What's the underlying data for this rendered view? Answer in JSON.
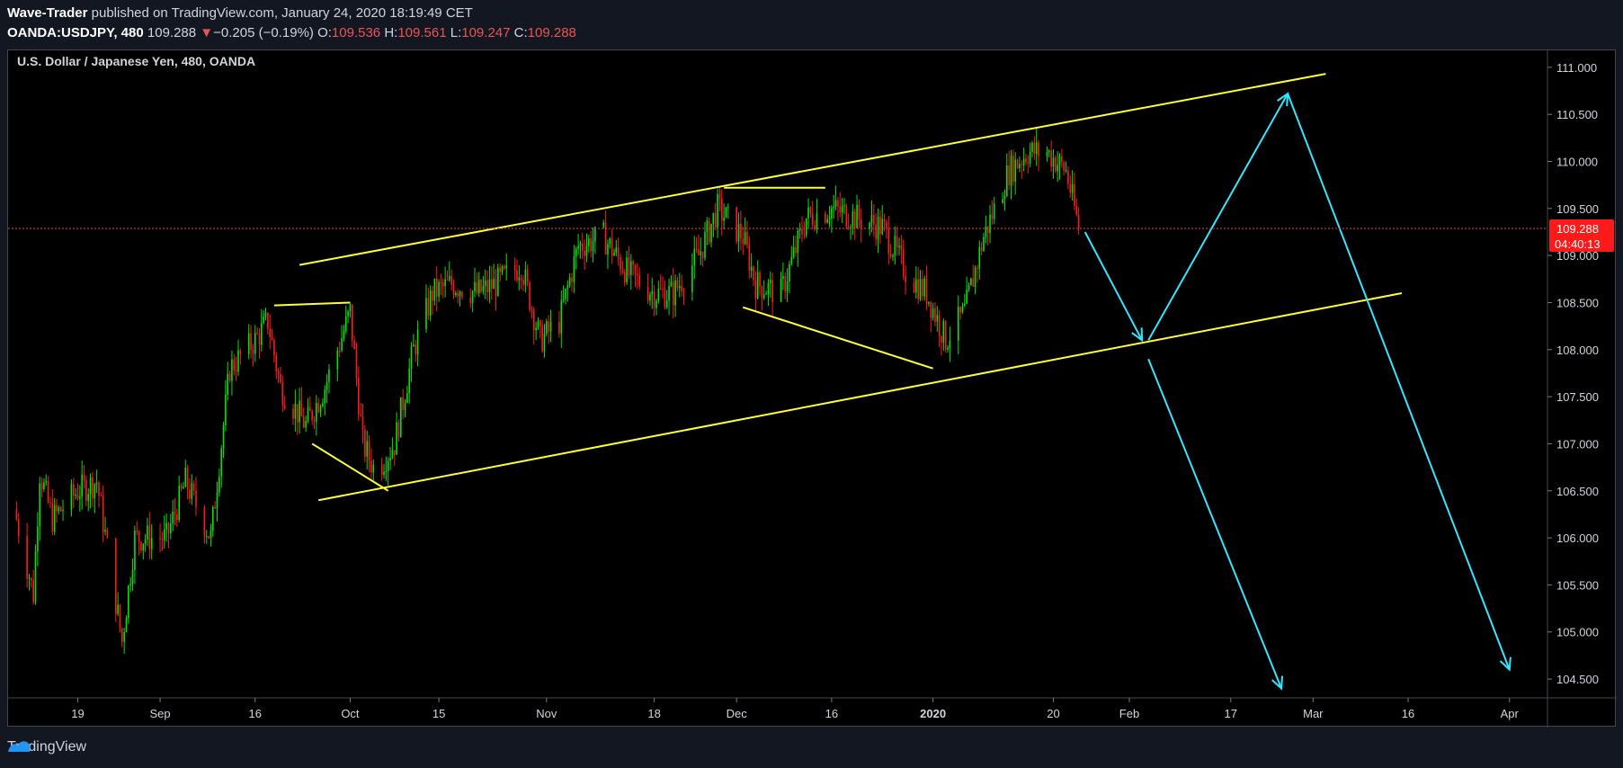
{
  "header": {
    "author": "Wave-Trader",
    "published_text": " published on TradingView.com, January 24, 2020 18:19:49 CET",
    "symbol": "OANDA:USDJPY, 480",
    "last": "109.288",
    "down_arrow": "▼",
    "change": "−0.205 (−0.19%)",
    "o_label": "O:",
    "o_value": "109.536",
    "h_label": "H:",
    "h_value": "109.561",
    "l_label": "L:",
    "l_value": "109.247",
    "c_label": "C:",
    "c_value": "109.288"
  },
  "footer": {
    "brand": "TradingView",
    "logo_icon": "tradingview-logo-icon"
  },
  "colors": {
    "background": "#000000",
    "page": "#131722",
    "up": "#00e600",
    "down": "#ff1a1a",
    "channel": "#ffff33",
    "projection": "#33e6ff",
    "price_line": "#ff3333",
    "price_tag": "#ff1a1a"
  },
  "chart_data": {
    "type": "candlestick",
    "title": "U.S. Dollar / Japanese Yen, 480, OANDA",
    "ylim": [
      104.3,
      111.18
    ],
    "y_ticks": [
      "111.000",
      "110.500",
      "110.000",
      "109.500",
      "109.000",
      "108.500",
      "108.000",
      "107.500",
      "107.000",
      "106.500",
      "106.000",
      "105.500",
      "105.000",
      "104.500"
    ],
    "x_ticks": [
      "19",
      "Sep",
      "16",
      "Oct",
      "15",
      "Nov",
      "18",
      "Dec",
      "16",
      "2020",
      "20",
      "Feb",
      "17",
      "Mar",
      "16",
      "Apr"
    ],
    "last_price": "109.288",
    "countdown": "04:40:13",
    "price_path": [
      [
        "2019-08-09",
        106.3
      ],
      [
        "2019-08-12",
        105.4
      ],
      [
        "2019-08-13",
        106.7
      ],
      [
        "2019-08-15",
        106.2
      ],
      [
        "2019-08-19",
        106.5
      ],
      [
        "2019-08-22",
        106.6
      ],
      [
        "2019-08-26",
        104.9
      ],
      [
        "2019-08-28",
        106.0
      ],
      [
        "2019-09-02",
        106.0
      ],
      [
        "2019-09-05",
        106.6
      ],
      [
        "2019-09-09",
        106.0
      ],
      [
        "2019-09-12",
        107.8
      ],
      [
        "2019-09-16",
        108.1
      ],
      [
        "2019-09-18",
        108.3
      ],
      [
        "2019-09-20",
        107.6
      ],
      [
        "2019-09-24",
        107.2
      ],
      [
        "2019-09-27",
        107.6
      ],
      [
        "2019-10-01",
        108.4
      ],
      [
        "2019-10-03",
        107.0
      ],
      [
        "2019-10-05",
        106.7
      ],
      [
        "2019-10-08",
        107.0
      ],
      [
        "2019-10-11",
        108.0
      ],
      [
        "2019-10-14",
        108.6
      ],
      [
        "2019-10-17",
        108.7
      ],
      [
        "2019-10-21",
        108.6
      ],
      [
        "2019-10-24",
        108.7
      ],
      [
        "2019-10-28",
        108.9
      ],
      [
        "2019-10-31",
        108.1
      ],
      [
        "2019-11-03",
        108.3
      ],
      [
        "2019-11-06",
        109.1
      ],
      [
        "2019-11-10",
        109.2
      ],
      [
        "2019-11-14",
        108.8
      ],
      [
        "2019-11-18",
        108.6
      ],
      [
        "2019-11-21",
        108.6
      ],
      [
        "2019-11-25",
        109.0
      ],
      [
        "2019-11-28",
        109.5
      ],
      [
        "2019-12-02",
        109.2
      ],
      [
        "2019-12-04",
        108.7
      ],
      [
        "2019-12-08",
        108.6
      ],
      [
        "2019-12-12",
        109.4
      ],
      [
        "2019-12-16",
        109.5
      ],
      [
        "2019-12-20",
        109.4
      ],
      [
        "2019-12-24",
        109.3
      ],
      [
        "2019-12-28",
        108.8
      ],
      [
        "2019-12-31",
        108.6
      ],
      [
        "2020-01-03",
        108.1
      ],
      [
        "2020-01-06",
        108.4
      ],
      [
        "2020-01-09",
        109.2
      ],
      [
        "2020-01-13",
        109.9
      ],
      [
        "2020-01-16",
        110.1
      ],
      [
        "2020-01-19",
        110.1
      ],
      [
        "2020-01-22",
        109.9
      ],
      [
        "2020-01-24",
        109.3
      ]
    ],
    "trend_lines": [
      {
        "from": [
          "2019-09-23",
          108.9
        ],
        "to": [
          "2020-03-03",
          110.93
        ],
        "color": "channel"
      },
      {
        "from": [
          "2019-09-26",
          106.4
        ],
        "to": [
          "2020-03-15",
          108.6
        ],
        "color": "channel"
      },
      {
        "from": [
          "2019-09-19",
          108.47
        ],
        "to": [
          "2019-10-01",
          108.5
        ],
        "color": "channel"
      },
      {
        "from": [
          "2019-09-25",
          107.0
        ],
        "to": [
          "2019-10-07",
          106.5
        ],
        "color": "channel"
      },
      {
        "from": [
          "2019-11-29",
          109.72
        ],
        "to": [
          "2019-12-15",
          109.72
        ],
        "color": "channel"
      },
      {
        "from": [
          "2019-12-02",
          108.45
        ],
        "to": [
          "2020-01-01",
          107.8
        ],
        "color": "channel"
      }
    ],
    "projection_arrows": [
      {
        "from": [
          "2020-01-25",
          109.25
        ],
        "to": [
          "2020-02-03",
          108.1
        ]
      },
      {
        "from": [
          "2020-02-04",
          108.1
        ],
        "to": [
          "2020-02-26",
          110.72
        ]
      },
      {
        "from": [
          "2020-02-26",
          110.72
        ],
        "to": [
          "2020-04-01",
          104.6
        ]
      },
      {
        "from": [
          "2020-02-04",
          107.9
        ],
        "to": [
          "2020-02-25",
          104.4
        ]
      }
    ]
  }
}
